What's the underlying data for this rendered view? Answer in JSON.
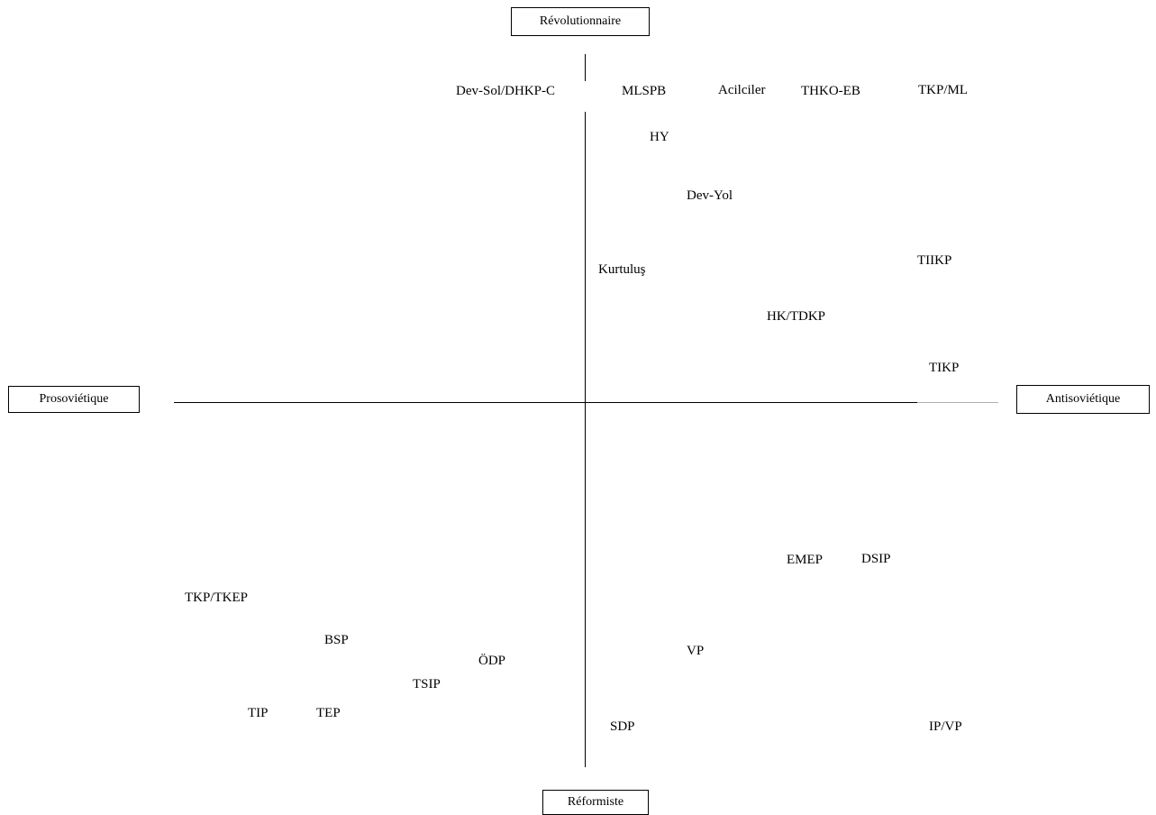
{
  "axes": {
    "top": "Révolutionnaire",
    "bottom": "Réformiste",
    "left": "Prosoviétique",
    "right": "Antisoviétique"
  },
  "parties": [
    "Dev-Sol/DHKP-C",
    "MLSPB",
    "Acilciler",
    "THKO-EB",
    "TKP/ML",
    "HY",
    "Dev-Yol",
    "Kurtuluş",
    "TIIKP",
    "HK/TDKP",
    "TIKP",
    "EMEP",
    "DSIP",
    "TKP/TKEP",
    "BSP",
    "ÖDP",
    "VP",
    "TSIP",
    "TIP",
    "TEP",
    "SDP",
    "IP/VP"
  ]
}
